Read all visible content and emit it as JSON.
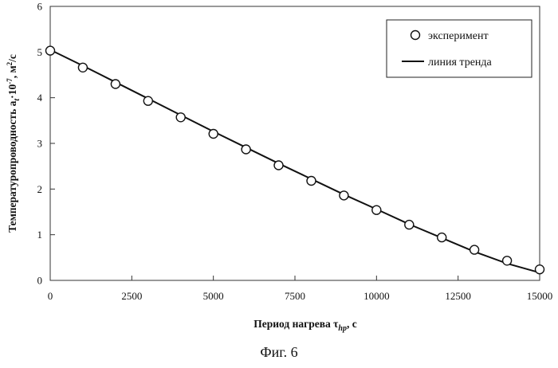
{
  "figure_caption": "Фиг. 6",
  "chart_data": {
    "type": "scatter",
    "xlabel_main": "Период нагрева τ",
    "xlabel_sub": "hp",
    "xlabel_unit": ", с",
    "ylabel_main": "Температуропроводность a",
    "ylabel_sub": "t",
    "ylabel_mid": "·10",
    "ylabel_exp": "-7",
    "ylabel_unit": ", м",
    "ylabel_unit_exp": "2",
    "ylabel_unit_tail": "/с",
    "xlim": [
      0,
      15000
    ],
    "ylim": [
      0,
      6
    ],
    "x_ticks": [
      "0",
      "2500",
      "5000",
      "7500",
      "10000",
      "12500",
      "15000"
    ],
    "y_ticks": [
      "0",
      "1",
      "2",
      "3",
      "4",
      "5",
      "6"
    ],
    "grid": false,
    "legend_position": "top-right",
    "series": [
      {
        "name": "эксперимент",
        "marker": "open-circle",
        "x": [
          0,
          1000,
          2000,
          3000,
          4000,
          5000,
          6000,
          7000,
          8000,
          9000,
          10000,
          11000,
          12000,
          13000,
          14000,
          15000
        ],
        "y": [
          5.03,
          4.66,
          4.3,
          3.93,
          3.57,
          3.21,
          2.87,
          2.52,
          2.18,
          1.86,
          1.54,
          1.22,
          0.94,
          0.67,
          0.43,
          0.24
        ]
      },
      {
        "name": "линия тренда",
        "style": "solid-line",
        "x": [
          0,
          1000,
          2000,
          3000,
          4000,
          5000,
          6000,
          7000,
          8000,
          9000,
          10000,
          11000,
          12000,
          13000,
          14000,
          15000
        ],
        "y": [
          5.05,
          4.7,
          4.34,
          3.98,
          3.62,
          3.26,
          2.91,
          2.56,
          2.22,
          1.88,
          1.56,
          1.23,
          0.93,
          0.63,
          0.37,
          0.17
        ]
      }
    ]
  }
}
